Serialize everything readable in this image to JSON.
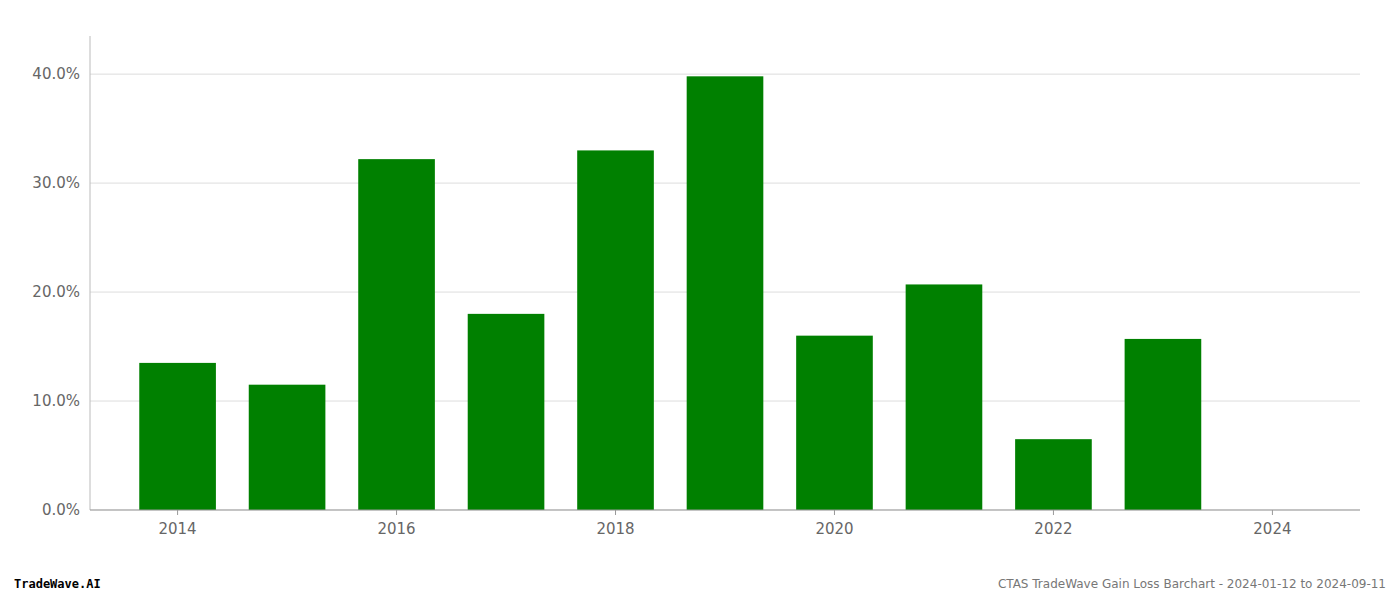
{
  "chart_data": {
    "type": "bar",
    "x": [
      2014,
      2015,
      2016,
      2017,
      2018,
      2019,
      2020,
      2021,
      2022,
      2023
    ],
    "values": [
      0.135,
      0.115,
      0.322,
      0.18,
      0.33,
      0.398,
      0.16,
      0.207,
      0.065,
      0.157
    ],
    "color": "#008000",
    "xlim": [
      2013.2,
      2024.8
    ],
    "xticks": [
      2014,
      2016,
      2018,
      2020,
      2022,
      2024
    ],
    "ylim": [
      0.0,
      0.435
    ],
    "yticks": [
      {
        "value": 0.0,
        "label": "0.0%"
      },
      {
        "value": 0.1,
        "label": "10.0%"
      },
      {
        "value": 0.2,
        "label": "20.0%"
      },
      {
        "value": 0.3,
        "label": "30.0%"
      },
      {
        "value": 0.4,
        "label": "40.0%"
      }
    ],
    "grid": true,
    "annotations": [
      "TradeWave.AI",
      "CTAS TradeWave Gain Loss Barchart - 2024-01-12 to 2024-09-11"
    ]
  }
}
